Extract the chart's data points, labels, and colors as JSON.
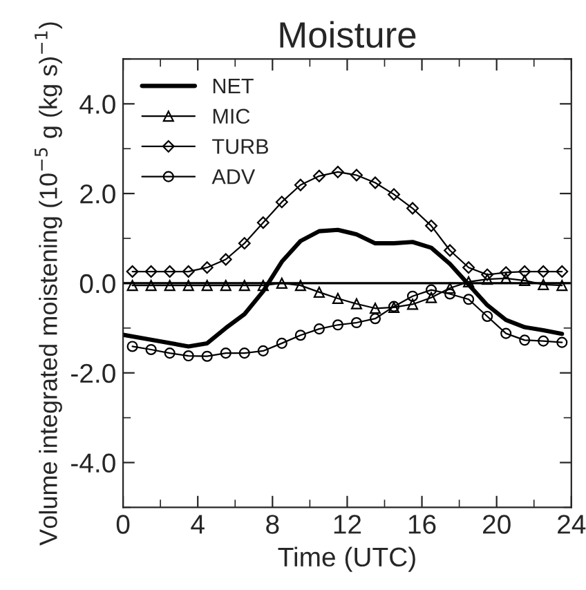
{
  "chart_data": {
    "type": "line",
    "title": "Moisture",
    "xlabel": "Time (UTC)",
    "ylabel": "Volume integrated moistening (10$^{−5}$ g (kg s)$^{−1}$)",
    "x": [
      0.5,
      1.5,
      2.5,
      3.5,
      4.5,
      5.5,
      6.5,
      7.5,
      8.5,
      9.5,
      10.5,
      11.5,
      12.5,
      13.5,
      14.5,
      15.5,
      16.5,
      17.5,
      18.5,
      19.5,
      20.5,
      21.5,
      22.5,
      23.5
    ],
    "series": [
      {
        "name": "NET",
        "color": "#000000",
        "marker": "none",
        "x": [
          0,
          1.5,
          3.5,
          4.5,
          5.5,
          6.5,
          7.5,
          8.5,
          9.5,
          10.5,
          11.5,
          12.5,
          13.5,
          14.5,
          15.5,
          16.5,
          17.5,
          18.5,
          19.5,
          20.5,
          21.5,
          22.5,
          23.5
        ],
        "values": [
          -1.15,
          -1.26,
          -1.41,
          -1.34,
          -1.0,
          -0.69,
          -0.18,
          0.48,
          0.94,
          1.16,
          1.19,
          1.09,
          0.89,
          0.89,
          0.92,
          0.79,
          0.43,
          -0.03,
          -0.49,
          -0.82,
          -0.98,
          -1.05,
          -1.13
        ]
      },
      {
        "name": "MIC",
        "color": "#000000",
        "marker": "triangle",
        "values": [
          -0.05,
          -0.05,
          -0.05,
          -0.05,
          -0.05,
          -0.05,
          -0.05,
          -0.05,
          0.0,
          -0.05,
          -0.2,
          -0.34,
          -0.46,
          -0.56,
          -0.54,
          -0.47,
          -0.32,
          -0.11,
          0.03,
          0.09,
          0.11,
          0.06,
          -0.03,
          -0.05
        ]
      },
      {
        "name": "TURB",
        "color": "#000000",
        "marker": "diamond",
        "values": [
          0.26,
          0.26,
          0.26,
          0.26,
          0.35,
          0.53,
          0.89,
          1.35,
          1.81,
          2.19,
          2.39,
          2.48,
          2.41,
          2.24,
          1.98,
          1.67,
          1.28,
          0.73,
          0.35,
          0.19,
          0.24,
          0.26,
          0.26,
          0.26
        ]
      },
      {
        "name": "ADV",
        "color": "#000000",
        "marker": "circle",
        "values": [
          -1.41,
          -1.48,
          -1.56,
          -1.62,
          -1.63,
          -1.56,
          -1.56,
          -1.51,
          -1.34,
          -1.16,
          -1.02,
          -0.93,
          -0.88,
          -0.79,
          -0.52,
          -0.29,
          -0.15,
          -0.24,
          -0.36,
          -0.74,
          -1.12,
          -1.27,
          -1.29,
          -1.32
        ]
      }
    ],
    "xlim": [
      0,
      24
    ],
    "xticks": [
      0,
      4,
      8,
      12,
      16,
      20,
      24
    ],
    "ylim": [
      -5,
      5
    ],
    "yticks": [
      {
        "value": -4,
        "label": "-4.0"
      },
      {
        "value": -2,
        "label": "-2.0"
      },
      {
        "value": 0,
        "label": "0.0"
      },
      {
        "value": 2,
        "label": "2.0"
      },
      {
        "value": 4,
        "label": "4.0"
      }
    ],
    "ref_lines": [
      {
        "axis": "y",
        "value": 0,
        "color": "#000000"
      }
    ],
    "legend": "top left",
    "grid": false
  }
}
